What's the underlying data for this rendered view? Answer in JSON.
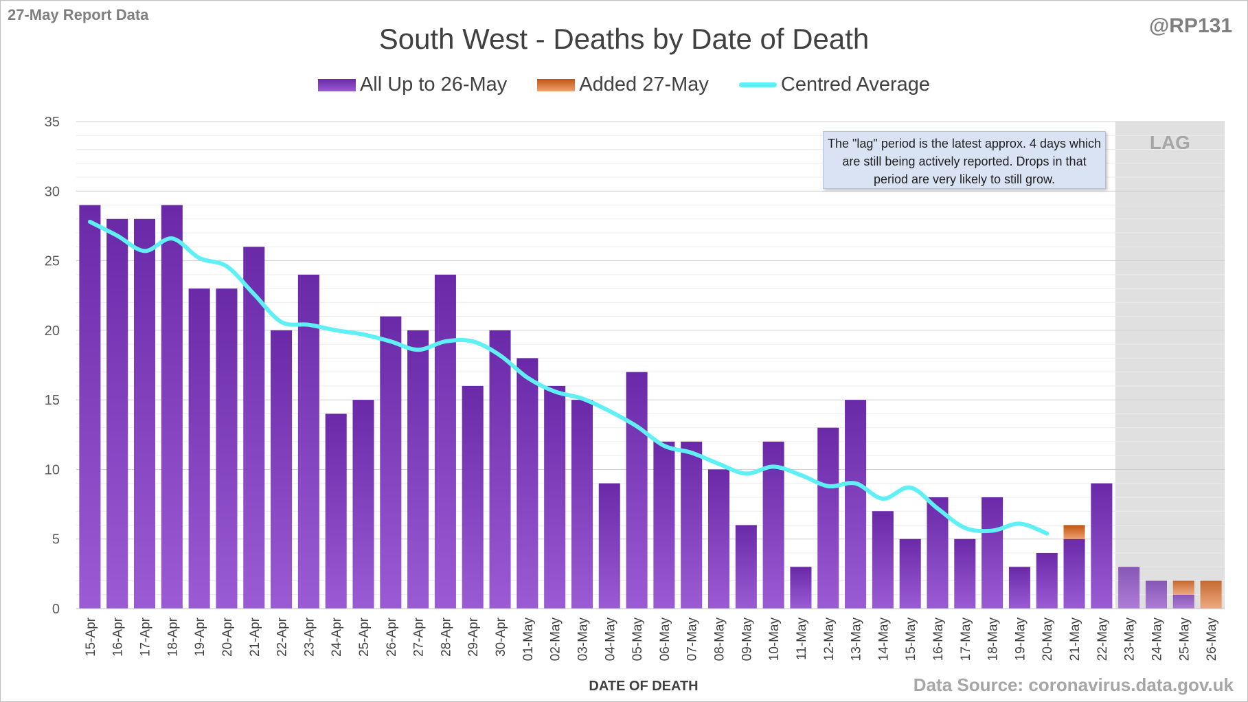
{
  "header": {
    "report_label": "27-May Report Data",
    "author": "@RP131",
    "title": "South West - Deaths by Date of Death"
  },
  "legend": {
    "all_up_to": "All Up to 26-May",
    "added": "Added 27-May",
    "centred_average": "Centred Average"
  },
  "note": {
    "text": "The \"lag\" period is the latest approx. 4 days which are still being actively reported. Drops in that period are very likely to still grow."
  },
  "footer": {
    "source": "Data Source: coronavirus.data.gov.uk"
  },
  "colors": {
    "bar_purple_top": "#6a2aa8",
    "bar_purple_bottom": "#9b5bd4",
    "bar_orange_top": "#c05510",
    "bar_orange_bottom": "#f0a070",
    "average_line": "#5ff0f5",
    "lag_shade": "#e0e0e0"
  },
  "chart_data": {
    "type": "bar",
    "xlabel": "DATE OF DEATH",
    "ylabel": "",
    "ylim": [
      0,
      35
    ],
    "yticks": [
      0,
      5,
      10,
      15,
      20,
      25,
      30,
      35
    ],
    "grid": true,
    "legend_position": "top",
    "stacked": true,
    "lag_label": "LAG",
    "lag_categories": [
      "23-May",
      "24-May",
      "25-May",
      "26-May"
    ],
    "categories": [
      "15-Apr",
      "16-Apr",
      "17-Apr",
      "18-Apr",
      "19-Apr",
      "20-Apr",
      "21-Apr",
      "22-Apr",
      "23-Apr",
      "24-Apr",
      "25-Apr",
      "26-Apr",
      "27-Apr",
      "28-Apr",
      "29-Apr",
      "30-Apr",
      "01-May",
      "02-May",
      "03-May",
      "04-May",
      "05-May",
      "06-May",
      "07-May",
      "08-May",
      "09-May",
      "10-May",
      "11-May",
      "12-May",
      "13-May",
      "14-May",
      "15-May",
      "16-May",
      "17-May",
      "18-May",
      "19-May",
      "20-May",
      "21-May",
      "22-May",
      "23-May",
      "24-May",
      "25-May",
      "26-May"
    ],
    "series": [
      {
        "name": "All Up to 26-May",
        "values": [
          29,
          28,
          28,
          29,
          23,
          23,
          26,
          20,
          24,
          14,
          15,
          21,
          20,
          24,
          16,
          20,
          18,
          16,
          15,
          9,
          17,
          12,
          12,
          10,
          6,
          12,
          3,
          13,
          15,
          7,
          5,
          8,
          5,
          8,
          3,
          4,
          5,
          9,
          3,
          2,
          1,
          0
        ]
      },
      {
        "name": "Added 27-May",
        "values": [
          0,
          0,
          0,
          0,
          0,
          0,
          0,
          0,
          0,
          0,
          0,
          0,
          0,
          0,
          0,
          0,
          0,
          0,
          0,
          0,
          0,
          0,
          0,
          0,
          0,
          0,
          0,
          0,
          0,
          0,
          0,
          0,
          0,
          0,
          0,
          0,
          1,
          0,
          0,
          0,
          1,
          2
        ]
      },
      {
        "name": "Centred Average",
        "type": "line",
        "values": [
          27.8,
          26.8,
          25.7,
          26.6,
          25.2,
          24.6,
          22.6,
          20.6,
          20.4,
          20.0,
          19.7,
          19.2,
          18.6,
          19.2,
          19.2,
          18.2,
          16.6,
          15.6,
          15.1,
          14.2,
          13.1,
          11.7,
          11.2,
          10.4,
          9.7,
          10.2,
          9.6,
          8.8,
          9.0,
          7.9,
          8.7,
          7.2,
          5.8,
          5.6,
          6.1,
          5.4,
          null,
          null,
          null,
          null,
          null,
          null
        ]
      }
    ]
  }
}
